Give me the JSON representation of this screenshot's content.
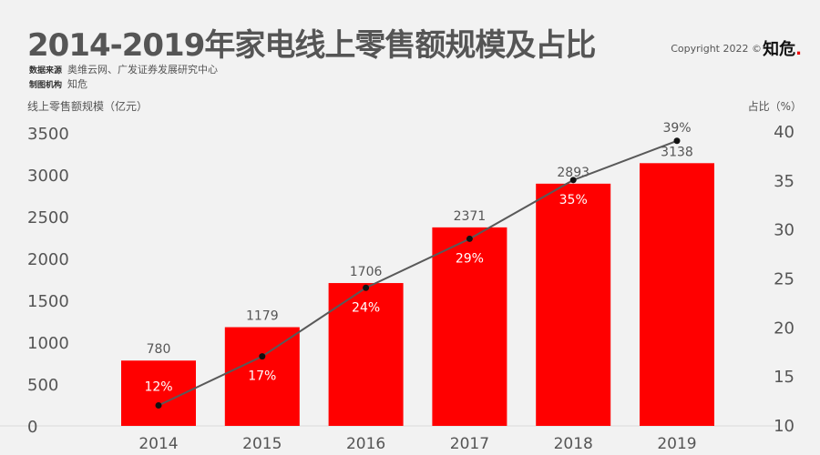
{
  "header": {
    "title": "2014-2019年家电线上零售额规模及占比",
    "source_label": "数据来源",
    "source": "奥维云网、广发证券发展研究中心",
    "maker_label": "制图机构",
    "maker": "知危",
    "copyright": "Copyright 2022 ©",
    "logo": "知危"
  },
  "chart_data": {
    "type": "bar+line",
    "title": "2014-2019年家电线上零售额规模及占比",
    "categories": [
      "2014",
      "2015",
      "2016",
      "2017",
      "2018",
      "2019"
    ],
    "ylabel": "线上零售额规模（亿元）",
    "y2label": "占比（%）",
    "ylim": [
      0,
      3500
    ],
    "yticks": [
      "0",
      "500",
      "1000",
      "1500",
      "2000",
      "2500",
      "3000",
      "3500"
    ],
    "y2lim": [
      10,
      40
    ],
    "y2ticks": [
      "10",
      "15",
      "20",
      "25",
      "30",
      "35",
      "40"
    ],
    "grid": false,
    "series": [
      {
        "type": "bar",
        "values": [
          780,
          1179,
          1706,
          2371,
          2893,
          3138
        ],
        "labels": [
          "780",
          "1179",
          "1706",
          "2371",
          "2893",
          "3138"
        ],
        "color": "#ff0000"
      },
      {
        "type": "line",
        "axis": "right",
        "values": [
          12,
          17,
          24,
          29,
          35,
          39
        ],
        "labels": [
          "12%",
          "17%",
          "24%",
          "29%",
          "35%",
          "39%"
        ],
        "color": "#595959"
      }
    ]
  }
}
